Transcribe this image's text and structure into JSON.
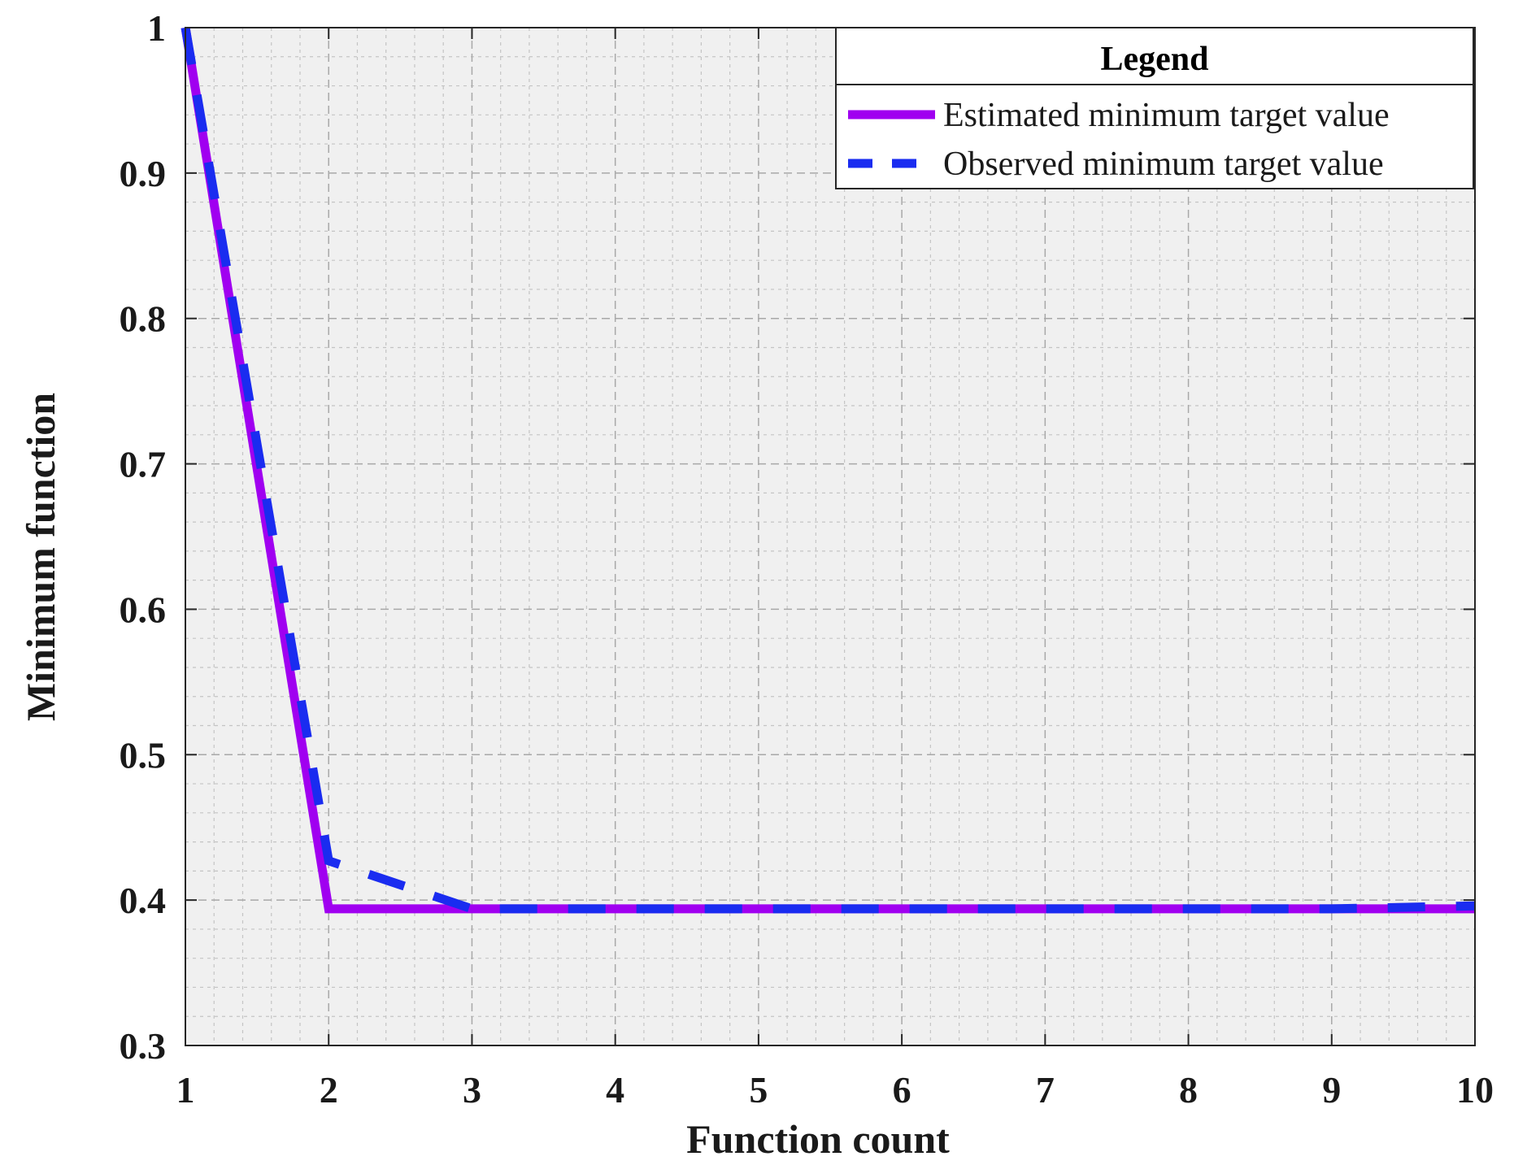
{
  "chart_data": {
    "type": "line",
    "xlabel": "Function count",
    "ylabel": "Minimum function",
    "xlim": [
      1,
      10
    ],
    "ylim": [
      0.3,
      1
    ],
    "xticks": [
      1,
      2,
      3,
      4,
      5,
      6,
      7,
      8,
      9,
      10
    ],
    "yticks": [
      0.3,
      0.4,
      0.5,
      0.6,
      0.7,
      0.8,
      0.9,
      1
    ],
    "ytick_labels": [
      "0.3",
      "0.4",
      "0.5",
      "0.6",
      "0.7",
      "0.8",
      "0.9",
      "1"
    ],
    "grid": true,
    "minor_grid": true,
    "legend": {
      "title": "Legend",
      "placement": "top-right"
    },
    "series": [
      {
        "name": "Estimated minimum target value",
        "color": "#a000f0",
        "style": "solid",
        "x": [
          1,
          2,
          3,
          4,
          5,
          6,
          7,
          8,
          9,
          10
        ],
        "y": [
          1.0,
          0.394,
          0.394,
          0.394,
          0.394,
          0.394,
          0.394,
          0.394,
          0.394,
          0.394
        ]
      },
      {
        "name": "Observed minimum target value",
        "color": "#1a2cf0",
        "style": "dashed",
        "x": [
          1,
          2,
          3,
          4,
          5,
          6,
          7,
          8,
          9,
          10
        ],
        "y": [
          1.0,
          0.427,
          0.394,
          0.394,
          0.394,
          0.394,
          0.394,
          0.394,
          0.394,
          0.396
        ]
      }
    ]
  }
}
